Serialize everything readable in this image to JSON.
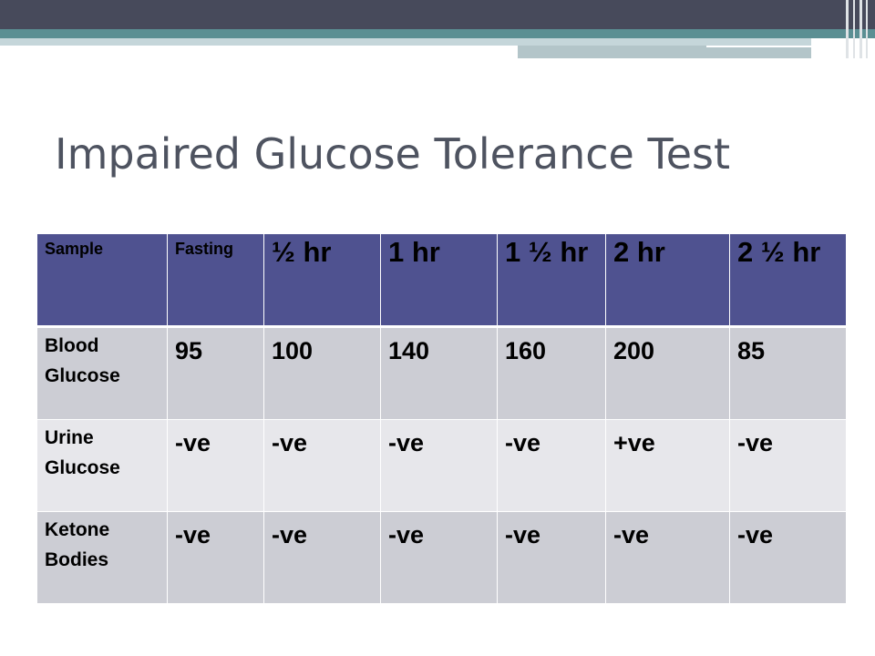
{
  "slide": {
    "title": "Impaired Glucose Tolerance Test"
  },
  "table": {
    "headers": [
      "Sample",
      "Fasting",
      "½ hr",
      "1 hr",
      "1 ½ hr",
      "2 hr",
      "2 ½ hr"
    ],
    "rows": [
      {
        "label_line1": "Blood",
        "label_line2": "Glucose",
        "values": [
          "95",
          "100",
          "140",
          "160",
          "200",
          "85"
        ]
      },
      {
        "label_line1": "Urine",
        "label_line2": "Glucose",
        "values": [
          "-ve",
          "-ve",
          "-ve",
          "-ve",
          "+ve",
          "-ve"
        ]
      },
      {
        "label_line1": "Ketone",
        "label_line2": "Bodies",
        "values": [
          "-ve",
          "-ve",
          "-ve",
          "-ve",
          "-ve",
          "-ve"
        ]
      }
    ]
  },
  "colors": {
    "header_bg": "#4f5290",
    "row_dark_bg": "#cccdd4",
    "row_light_bg": "#e7e7eb",
    "title_color": "#4e5360",
    "top_bar_dark": "#474a5b",
    "top_bar_teal": "#5b8f93"
  }
}
